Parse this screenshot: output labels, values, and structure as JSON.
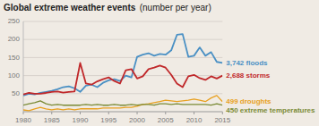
{
  "chart_data": {
    "type": "line",
    "title": "Global extreme weather events",
    "subtitle": "(number per year)",
    "x": [
      1980,
      1981,
      1982,
      1983,
      1984,
      1985,
      1986,
      1987,
      1988,
      1989,
      1990,
      1991,
      1992,
      1993,
      1994,
      1995,
      1996,
      1997,
      1998,
      1999,
      2000,
      2001,
      2002,
      2003,
      2004,
      2005,
      2006,
      2007,
      2008,
      2009,
      2010,
      2011,
      2012,
      2013,
      2014,
      2015
    ],
    "series": [
      {
        "name": "3,742 floods",
        "color": "#4a90c4",
        "values": [
          45,
          50,
          48,
          52,
          55,
          58,
          62,
          68,
          70,
          65,
          55,
          72,
          75,
          68,
          80,
          87,
          90,
          85,
          100,
          95,
          152,
          158,
          162,
          155,
          160,
          158,
          170,
          213,
          215,
          152,
          155,
          178,
          155,
          165,
          138,
          135
        ]
      },
      {
        "name": "2,688 storms",
        "color": "#c0282a",
        "values": [
          48,
          52,
          50,
          50,
          52,
          55,
          56,
          53,
          55,
          56,
          135,
          78,
          75,
          84,
          90,
          95,
          85,
          78,
          115,
          118,
          92,
          98,
          118,
          122,
          128,
          122,
          102,
          78,
          68,
          98,
          102,
          93,
          88,
          98,
          92,
          100
        ]
      },
      {
        "name": "499 droughts",
        "color": "#e8a020",
        "values": [
          5,
          3,
          8,
          12,
          8,
          5,
          8,
          5,
          8,
          5,
          8,
          8,
          8,
          8,
          10,
          10,
          10,
          10,
          12,
          12,
          15,
          20,
          22,
          25,
          28,
          32,
          30,
          28,
          30,
          32,
          35,
          32,
          28,
          38,
          45,
          28
        ]
      },
      {
        "name": "450 extreme temperatures",
        "color": "#7a8a35",
        "values": [
          18,
          22,
          25,
          30,
          22,
          18,
          20,
          18,
          18,
          18,
          18,
          20,
          18,
          20,
          18,
          18,
          20,
          18,
          18,
          20,
          18,
          20,
          20,
          18,
          22,
          22,
          20,
          22,
          20,
          20,
          20,
          20,
          20,
          18,
          22,
          18
        ]
      }
    ],
    "xlim": [
      1980,
      2015
    ],
    "xticks": [
      1980,
      1985,
      1990,
      1995,
      2000,
      2005,
      2010,
      2015
    ],
    "ylim": [
      0,
      250
    ],
    "yticks": [
      50,
      100,
      150,
      200,
      250
    ],
    "grid": true
  }
}
